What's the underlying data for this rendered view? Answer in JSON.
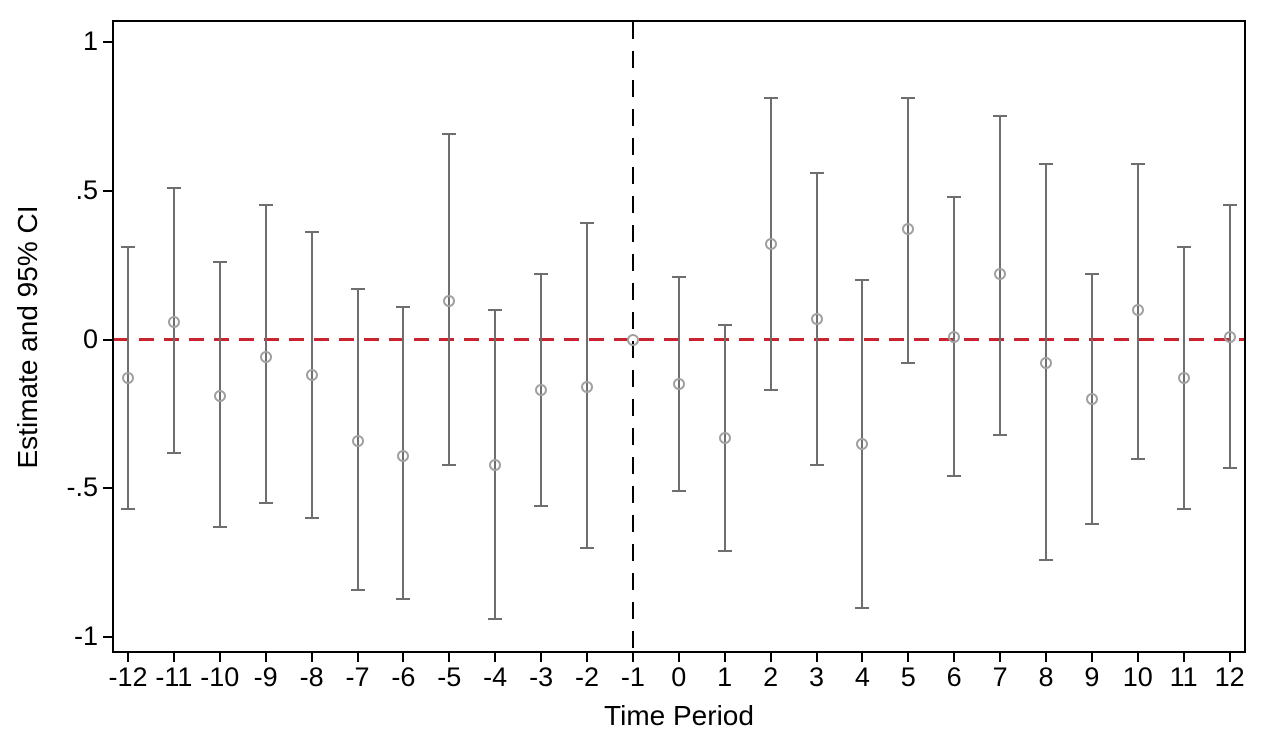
{
  "colors": {
    "zero_line_red": "#c8232f",
    "reference_line_black": "#000000",
    "error_bar_gray": "#6e6e6e",
    "marker_gray": "#a0a0a0",
    "axis_black": "#000000"
  },
  "chart_data": {
    "type": "scatter",
    "subtype": "event-study point estimates with 95% confidence intervals",
    "title": "",
    "xlabel": "Time Period",
    "ylabel": "Estimate and 95% CI",
    "x_tick_labels": [
      "-12",
      "-11",
      "-10",
      "-9",
      "-8",
      "-7",
      "-6",
      "-5",
      "-4",
      "-3",
      "-2",
      "-1",
      "0",
      "1",
      "2",
      "3",
      "4",
      "5",
      "6",
      "7",
      "8",
      "9",
      "10",
      "11",
      "12"
    ],
    "y_ticks": [
      {
        "value": 1,
        "label": "1"
      },
      {
        "value": 0.5,
        "label": ".5"
      },
      {
        "value": 0,
        "label": "0"
      },
      {
        "value": -0.5,
        "label": "-.5"
      },
      {
        "value": -1,
        "label": "-1"
      }
    ],
    "ylim": [
      -1.05,
      1.07
    ],
    "grid": false,
    "legend": "none",
    "reference_lines": {
      "horizontal": {
        "y": 0,
        "style": "dashed",
        "color": "#c8232f"
      },
      "vertical": {
        "x": -1,
        "style": "dashed",
        "color": "#000000"
      }
    },
    "points": [
      {
        "x": -12,
        "estimate": -0.13,
        "ci_low": -0.57,
        "ci_high": 0.31,
        "has_ci": true
      },
      {
        "x": -11,
        "estimate": 0.06,
        "ci_low": -0.38,
        "ci_high": 0.51,
        "has_ci": true
      },
      {
        "x": -10,
        "estimate": -0.19,
        "ci_low": -0.63,
        "ci_high": 0.26,
        "has_ci": true
      },
      {
        "x": -9,
        "estimate": -0.06,
        "ci_low": -0.55,
        "ci_high": 0.45,
        "has_ci": true
      },
      {
        "x": -8,
        "estimate": -0.12,
        "ci_low": -0.6,
        "ci_high": 0.36,
        "has_ci": true
      },
      {
        "x": -7,
        "estimate": -0.34,
        "ci_low": -0.84,
        "ci_high": 0.17,
        "has_ci": true
      },
      {
        "x": -6,
        "estimate": -0.39,
        "ci_low": -0.87,
        "ci_high": 0.11,
        "has_ci": true
      },
      {
        "x": -5,
        "estimate": 0.13,
        "ci_low": -0.42,
        "ci_high": 0.69,
        "has_ci": true
      },
      {
        "x": -4,
        "estimate": -0.42,
        "ci_low": -0.94,
        "ci_high": 0.1,
        "has_ci": true
      },
      {
        "x": -3,
        "estimate": -0.17,
        "ci_low": -0.56,
        "ci_high": 0.22,
        "has_ci": true
      },
      {
        "x": -2,
        "estimate": -0.16,
        "ci_low": -0.7,
        "ci_high": 0.39,
        "has_ci": true
      },
      {
        "x": -1,
        "estimate": 0.0,
        "ci_low": 0.0,
        "ci_high": 0.0,
        "has_ci": false
      },
      {
        "x": 0,
        "estimate": -0.15,
        "ci_low": -0.51,
        "ci_high": 0.21,
        "has_ci": true
      },
      {
        "x": 1,
        "estimate": -0.33,
        "ci_low": -0.71,
        "ci_high": 0.05,
        "has_ci": true
      },
      {
        "x": 2,
        "estimate": 0.32,
        "ci_low": -0.17,
        "ci_high": 0.81,
        "has_ci": true
      },
      {
        "x": 3,
        "estimate": 0.07,
        "ci_low": -0.42,
        "ci_high": 0.56,
        "has_ci": true
      },
      {
        "x": 4,
        "estimate": -0.35,
        "ci_low": -0.9,
        "ci_high": 0.2,
        "has_ci": true
      },
      {
        "x": 5,
        "estimate": 0.37,
        "ci_low": -0.08,
        "ci_high": 0.81,
        "has_ci": true
      },
      {
        "x": 6,
        "estimate": 0.01,
        "ci_low": -0.46,
        "ci_high": 0.48,
        "has_ci": true
      },
      {
        "x": 7,
        "estimate": 0.22,
        "ci_low": -0.32,
        "ci_high": 0.75,
        "has_ci": true
      },
      {
        "x": 8,
        "estimate": -0.08,
        "ci_low": -0.74,
        "ci_high": 0.59,
        "has_ci": true
      },
      {
        "x": 9,
        "estimate": -0.2,
        "ci_low": -0.62,
        "ci_high": 0.22,
        "has_ci": true
      },
      {
        "x": 10,
        "estimate": 0.1,
        "ci_low": -0.4,
        "ci_high": 0.59,
        "has_ci": true
      },
      {
        "x": 11,
        "estimate": -0.13,
        "ci_low": -0.57,
        "ci_high": 0.31,
        "has_ci": true
      },
      {
        "x": 12,
        "estimate": 0.01,
        "ci_low": -0.43,
        "ci_high": 0.45,
        "has_ci": true
      }
    ]
  }
}
